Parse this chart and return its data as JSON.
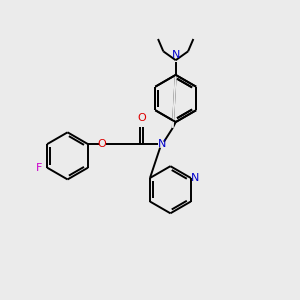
{
  "background_color": "#ebebeb",
  "bond_color": "#000000",
  "atom_colors": {
    "N": "#0000cc",
    "O": "#dd0000",
    "F": "#cc00cc",
    "C": "#000000"
  },
  "figsize": [
    3.0,
    3.0
  ],
  "dpi": 100
}
